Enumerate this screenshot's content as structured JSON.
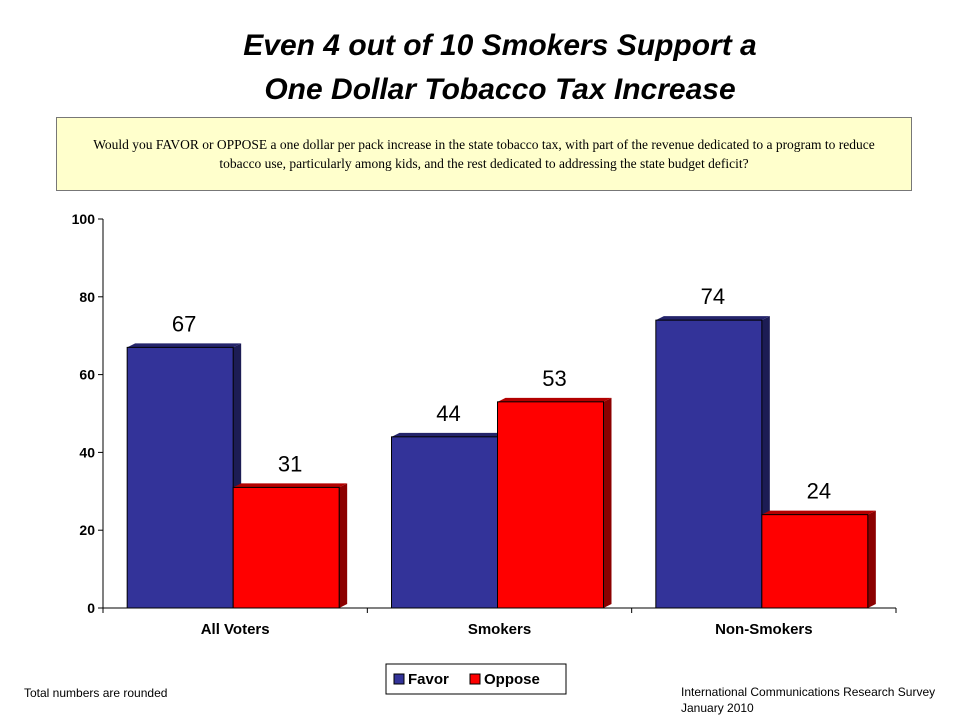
{
  "title": {
    "line1": "Even 4 out of 10 Smokers Support a",
    "line2": "One Dollar Tobacco Tax Increase"
  },
  "question": "Would you FAVOR or OPPOSE a one dollar per pack increase in the state tobacco tax, with part of the revenue dedicated to a program to reduce tobacco use, particularly among kids, and the rest dedicated to addressing the state budget deficit?",
  "colors": {
    "favor": "#333399",
    "oppose": "#ff0000",
    "question_box": "#ffffcc"
  },
  "chart_data": {
    "type": "bar",
    "categories": [
      "All Voters",
      "Smokers",
      "Non-Smokers"
    ],
    "series": [
      {
        "name": "Favor",
        "values": [
          67,
          44,
          74
        ]
      },
      {
        "name": "Oppose",
        "values": [
          31,
          53,
          24
        ]
      }
    ],
    "yticks": [
      0,
      20,
      40,
      60,
      80,
      100
    ],
    "ylim": [
      0,
      100
    ],
    "legend_position": "bottom",
    "grid": false
  },
  "footnotes": {
    "left": "Total numbers are rounded",
    "right_line1": "International Communications Research Survey",
    "right_line2": "January 2010"
  }
}
